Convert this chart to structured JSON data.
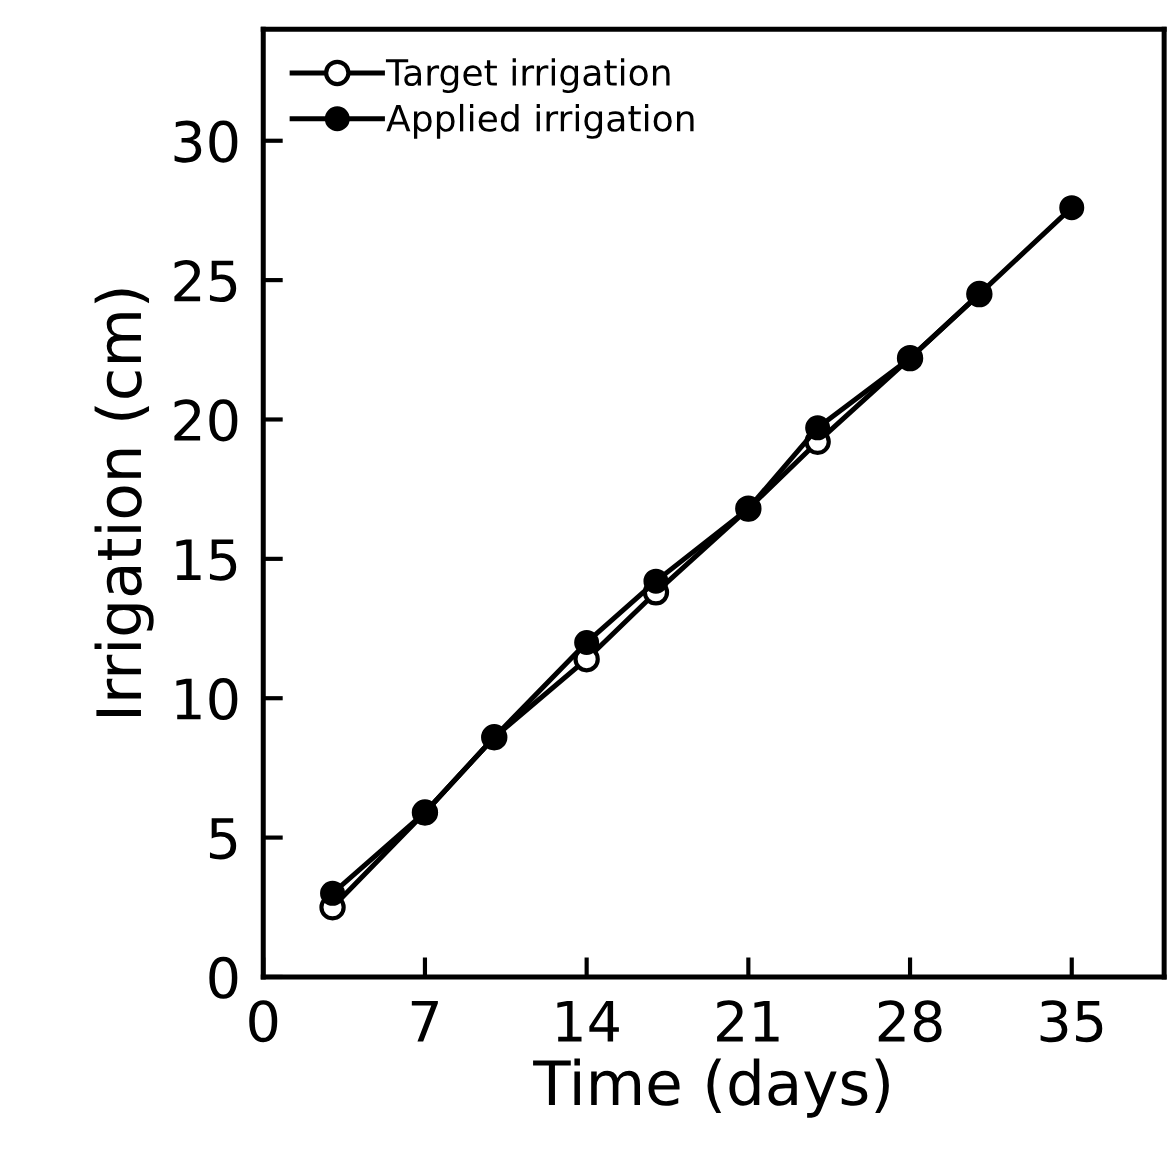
{
  "chart_data": {
    "type": "line",
    "xlabel": "Time (days)",
    "ylabel": "Irrigation (cm)",
    "x": [
      3,
      7,
      10,
      14,
      17,
      21,
      24,
      28,
      31,
      35
    ],
    "series": [
      {
        "name": "Target irrigation",
        "color": "#000000",
        "marker": "circle",
        "values": [
          2.5,
          5.9,
          8.6,
          11.4,
          13.8,
          16.8,
          19.2,
          22.2,
          24.5,
          null
        ]
      },
      {
        "name": "Applied irrigation",
        "color": "#000000",
        "marker": "circle",
        "values": [
          3.0,
          5.9,
          8.6,
          12.0,
          14.2,
          16.8,
          19.7,
          22.2,
          24.5,
          27.6
        ]
      }
    ],
    "xlim": [
      0,
      39
    ],
    "xticks": [
      0,
      7,
      14,
      21,
      28,
      35
    ],
    "ylim": [
      0,
      34
    ],
    "yticks": [
      0,
      5,
      10,
      15,
      20,
      25,
      30
    ],
    "grid": false,
    "legend": "top left",
    "line_style": "solid"
  }
}
